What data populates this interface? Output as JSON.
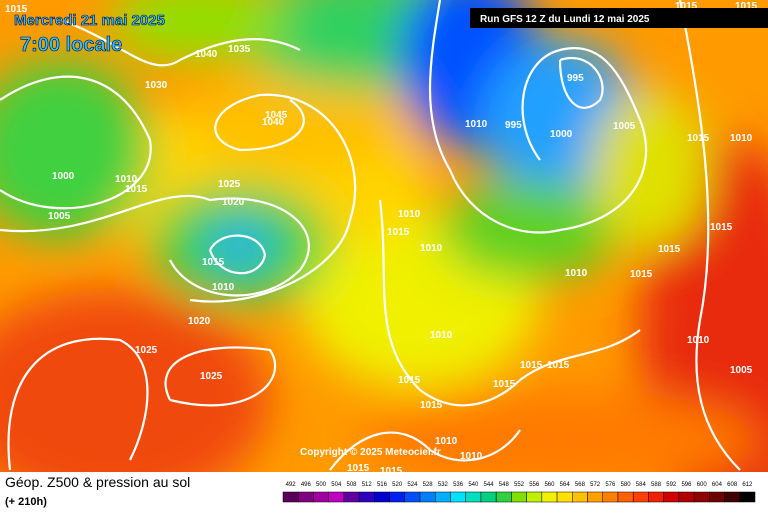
{
  "header": {
    "valid_date": "Mercredi 21 mai 2025",
    "local_time": "7:00 locale",
    "run": "Run GFS 12 Z du Lundi 12 mai 2025"
  },
  "map": {
    "isobar_labels": [
      "1015",
      "1040",
      "1035",
      "1030",
      "1045",
      "1040",
      "1000",
      "1010",
      "1015",
      "1005",
      "1025",
      "1020",
      "1015",
      "1010",
      "1020",
      "1025",
      "1025",
      "1015",
      "1015",
      "995",
      "1010",
      "995",
      "1000",
      "1005",
      "1015",
      "1010",
      "1010",
      "1015",
      "1010",
      "1015",
      "1015",
      "1010",
      "1015",
      "1010",
      "1010",
      "1015",
      "1015",
      "1005",
      "1015",
      "1015",
      "1015",
      "1010",
      "1010",
      "1015",
      "1015"
    ],
    "copyright": "Copyright © 2025 Meteociel.fr"
  },
  "footer": {
    "title": "Géop. Z500 & pression au sol",
    "lead_time": "(+ 210h)",
    "scale_values": [
      492,
      496,
      500,
      504,
      508,
      512,
      516,
      520,
      524,
      528,
      532,
      536,
      540,
      544,
      548,
      552,
      556,
      560,
      564,
      568,
      572,
      576,
      580,
      584,
      588,
      592,
      596,
      600,
      604,
      608,
      612
    ],
    "scale_colors": [
      "#5a005a",
      "#800080",
      "#a000a0",
      "#c000c0",
      "#6000a0",
      "#3000c0",
      "#0000d0",
      "#0020f0",
      "#0050ff",
      "#0080ff",
      "#00b0ff",
      "#00e0ff",
      "#00e0c0",
      "#00d080",
      "#30d040",
      "#80e000",
      "#c0f000",
      "#f0f000",
      "#ffe000",
      "#ffc000",
      "#ffa000",
      "#ff8000",
      "#ff6000",
      "#ff4000",
      "#f02000",
      "#d00000",
      "#b00000",
      "#900000",
      "#700000",
      "#400000",
      "#000000"
    ]
  }
}
